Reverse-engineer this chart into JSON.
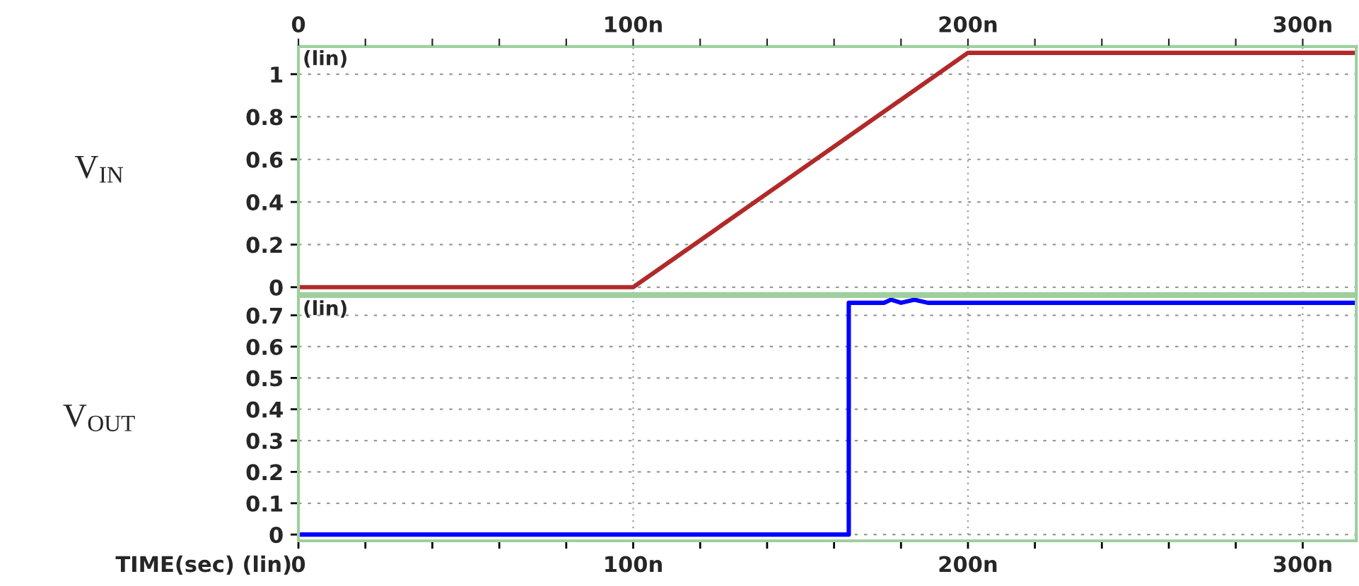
{
  "chart_data": [
    {
      "type": "line",
      "ylabel": "V$_{IN}$",
      "annotations": [
        "(lin)"
      ],
      "xlim": [
        0,
        316
      ],
      "x2lim": [
        0,
        316
      ],
      "x2ticks": [
        0,
        {
          "value": 20,
          "label": null
        },
        {
          "value": 40,
          "label": null
        },
        {
          "value": 60,
          "label": null
        },
        {
          "value": 80,
          "label": null
        },
        {
          "value": 100,
          "label": "100n"
        },
        {
          "value": 120,
          "label": null
        },
        {
          "value": 140,
          "label": null
        },
        {
          "value": 160,
          "label": null
        },
        {
          "value": 180,
          "label": null
        },
        {
          "value": 200,
          "label": "200n"
        },
        {
          "value": 220,
          "label": null
        },
        {
          "value": 240,
          "label": null
        },
        {
          "value": 260,
          "label": null
        },
        {
          "value": 280,
          "label": null
        },
        {
          "value": 300,
          "label": "300n"
        }
      ],
      "ylim": [
        -0.03,
        1.13
      ],
      "yticks": [
        0,
        0.2,
        0.4,
        0.6,
        0.8,
        1
      ],
      "grid": true,
      "tick_labels": "y",
      "line_style": "solid",
      "marker": "none",
      "series": [
        {
          "color": "#b02a2a",
          "x": [
            0,
            100,
            200,
            316
          ],
          "values": [
            0,
            0,
            1.1,
            1.1
          ]
        }
      ]
    },
    {
      "type": "line",
      "ylabel": "V$_{OUT}$",
      "xlabel": "TIME(sec) (lin)",
      "annotations": [
        "(lin)"
      ],
      "xlim": [
        0,
        316
      ],
      "xticks": [
        0,
        {
          "value": 20,
          "label": null
        },
        {
          "value": 40,
          "label": null
        },
        {
          "value": 60,
          "label": null
        },
        {
          "value": 80,
          "label": null
        },
        {
          "value": 100,
          "label": "100n"
        },
        {
          "value": 120,
          "label": null
        },
        {
          "value": 140,
          "label": null
        },
        {
          "value": 160,
          "label": null
        },
        {
          "value": 180,
          "label": null
        },
        {
          "value": 200,
          "label": "200n"
        },
        {
          "value": 220,
          "label": null
        },
        {
          "value": 240,
          "label": null
        },
        {
          "value": 260,
          "label": null
        },
        {
          "value": 280,
          "label": null
        },
        {
          "value": 300,
          "label": "300n"
        }
      ],
      "ylim": [
        -0.02,
        0.76
      ],
      "yticks": [
        0,
        0.1,
        0.2,
        0.3,
        0.4,
        0.5,
        0.6,
        0.7
      ],
      "grid": true,
      "line_style": "solid",
      "marker": "none",
      "series": [
        {
          "color": "#0000ff",
          "x": [
            0,
            164.4,
            164.4,
            175,
            177,
            180,
            184,
            188,
            316
          ],
          "values": [
            0,
            0,
            0.74,
            0.74,
            0.75,
            0.74,
            0.75,
            0.74,
            0.74
          ]
        }
      ]
    }
  ]
}
